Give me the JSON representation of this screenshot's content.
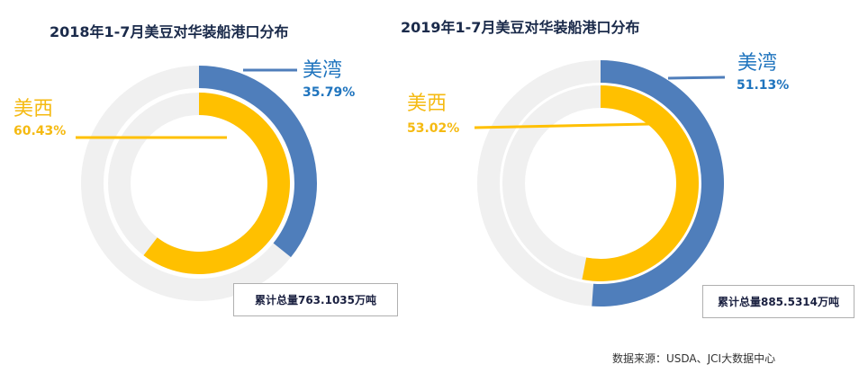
{
  "colors": {
    "us_gulf": "#4F7EBB",
    "us_west": "#FFC000",
    "track": "#F0F0F0",
    "gulf_text": "#1F74BE",
    "west_text": "#F5BA12"
  },
  "chart_data": [
    {
      "type": "pie",
      "subtype": "concentric-donut",
      "title": "2018年1-7月美豆对华装船港口分布",
      "series": [
        {
          "name": "美湾",
          "value": 35.79,
          "label": "35.79%",
          "ring": "outer"
        },
        {
          "name": "美西",
          "value": 60.43,
          "label": "60.43%",
          "ring": "inner"
        }
      ],
      "total_label": "累计总量763.1035万吨"
    },
    {
      "type": "pie",
      "subtype": "concentric-donut",
      "title": "2019年1-7月美豆对华装船港口分布",
      "series": [
        {
          "name": "美湾",
          "value": 51.13,
          "label": "51.13%",
          "ring": "outer"
        },
        {
          "name": "美西",
          "value": 53.02,
          "label": "53.02%",
          "ring": "inner"
        }
      ],
      "total_label": "累计总量885.5314万吨"
    }
  ],
  "source": "数据来源：USDA、JCI大数据中心"
}
